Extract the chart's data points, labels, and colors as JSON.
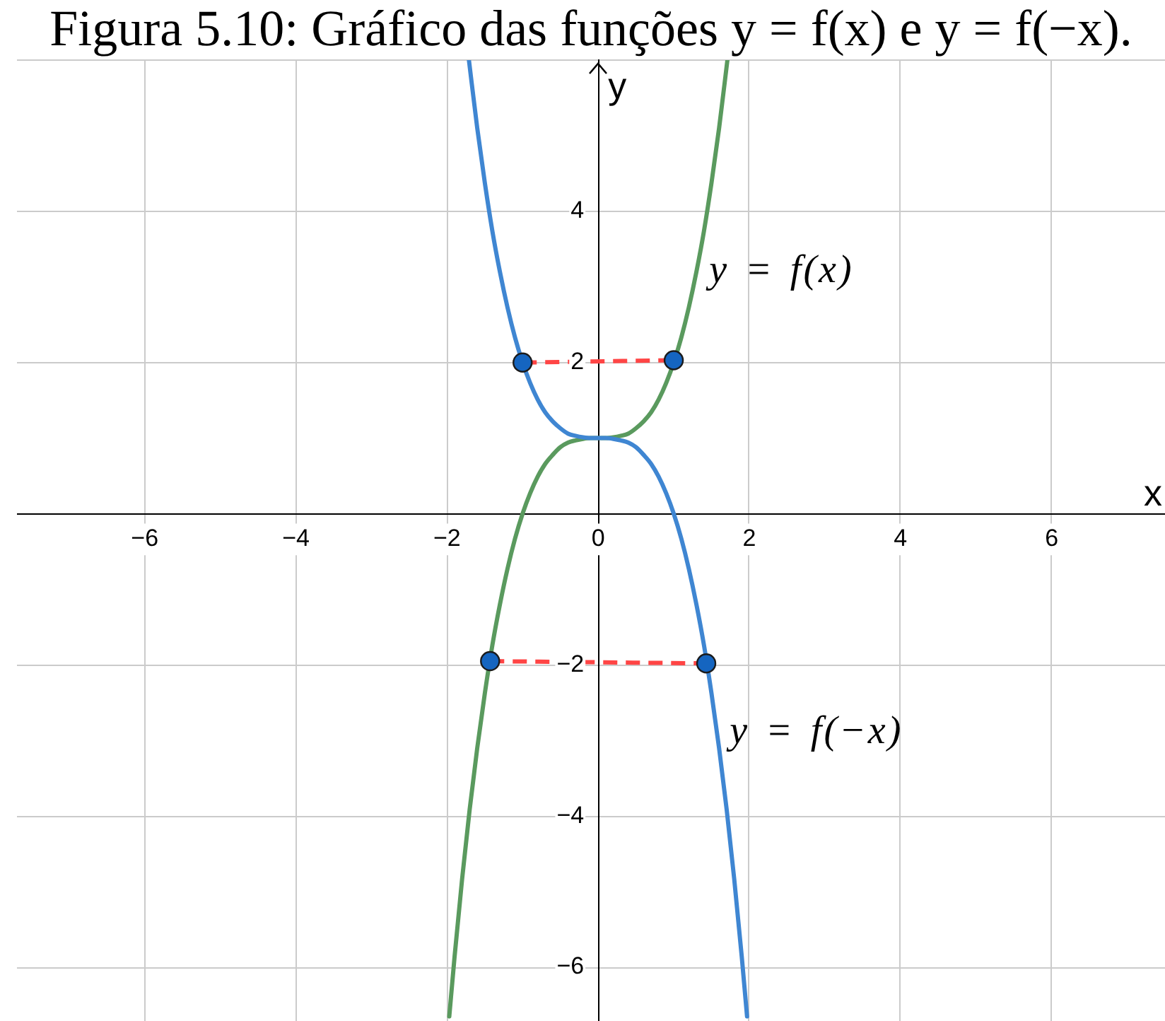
{
  "chart_data": {
    "type": "line",
    "title": "Figura 5.10: Gráfico das funções y = f(x) e y = f(−x).",
    "xlabel": "x",
    "ylabel": "y",
    "series": [
      {
        "name": "y = f(x)",
        "type": "line",
        "color": "#5a9a5e",
        "x": [
          -1.97,
          -1.9,
          -1.8,
          -1.7,
          -1.6,
          -1.5,
          -1.4,
          -1.3,
          -1.2,
          -1.1,
          -1.0,
          -0.9,
          -0.8,
          -0.7,
          -0.6,
          -0.5,
          -0.4,
          -0.3,
          -0.2,
          -0.1,
          0,
          0.1,
          0.2,
          0.3,
          0.4,
          0.5,
          0.6,
          0.7,
          0.8,
          0.9,
          1.0,
          1.1,
          1.2,
          1.3,
          1.4,
          1.5,
          1.6,
          1.71
        ],
        "values": [
          -6.65,
          -5.86,
          -4.83,
          -3.91,
          -3.1,
          -2.38,
          -1.74,
          -1.2,
          -0.73,
          -0.33,
          0,
          0.27,
          0.49,
          0.66,
          0.78,
          0.88,
          0.94,
          0.97,
          0.99,
          1.0,
          1,
          1.0,
          1.01,
          1.03,
          1.06,
          1.13,
          1.22,
          1.34,
          1.51,
          1.73,
          2,
          2.33,
          2.73,
          3.2,
          3.74,
          4.38,
          5.1,
          6
        ]
      },
      {
        "name": "y = f(−x)",
        "type": "line",
        "color": "#3f86d2",
        "x": [
          -1.71,
          -1.6,
          -1.5,
          -1.4,
          -1.3,
          -1.2,
          -1.1,
          -1.0,
          -0.9,
          -0.8,
          -0.7,
          -0.6,
          -0.5,
          -0.4,
          -0.3,
          -0.2,
          -0.1,
          0,
          0.1,
          0.2,
          0.3,
          0.4,
          0.5,
          0.6,
          0.7,
          0.8,
          0.9,
          1.0,
          1.1,
          1.2,
          1.3,
          1.4,
          1.5,
          1.6,
          1.7,
          1.8,
          1.9,
          1.97
        ],
        "values": [
          6,
          5.1,
          4.38,
          3.74,
          3.2,
          2.73,
          2.33,
          2,
          1.73,
          1.51,
          1.34,
          1.22,
          1.13,
          1.06,
          1.03,
          1.01,
          1.0,
          1,
          1.0,
          0.99,
          0.97,
          0.94,
          0.88,
          0.78,
          0.66,
          0.49,
          0.27,
          0,
          -0.33,
          -0.73,
          -1.2,
          -1.74,
          -2.38,
          -3.1,
          -3.91,
          -4.83,
          -5.86,
          -6.65
        ]
      },
      {
        "type": "line",
        "line_style": "dashed",
        "color": "#ff4545",
        "x": [
          -1.0,
          1.0
        ],
        "values": [
          2.0,
          2.03
        ]
      },
      {
        "type": "line",
        "line_style": "dashed",
        "color": "#ff4545",
        "x": [
          -1.43,
          1.43
        ],
        "values": [
          -1.95,
          -1.98
        ]
      },
      {
        "type": "scatter",
        "marker": "circle",
        "color": "#1565c0",
        "x": [
          -1.0,
          1.0,
          -1.43,
          1.43
        ],
        "values": [
          2.0,
          2.03,
          -1.95,
          -1.98
        ]
      }
    ],
    "xlim": [
      -7.69,
      7.5
    ],
    "ylim": [
      -6.71,
      6
    ],
    "xticks": [
      {
        "value": -6,
        "label": "−6"
      },
      {
        "value": -4,
        "label": "−4"
      },
      {
        "value": -2,
        "label": "−2"
      },
      0,
      2,
      4,
      6
    ],
    "yticks": [
      {
        "value": -6,
        "label": "−6"
      },
      {
        "value": -4,
        "label": "−4"
      },
      {
        "value": -2,
        "label": "−2"
      },
      2,
      4,
      {
        "value": 6,
        "label": null
      }
    ],
    "grid": true
  }
}
